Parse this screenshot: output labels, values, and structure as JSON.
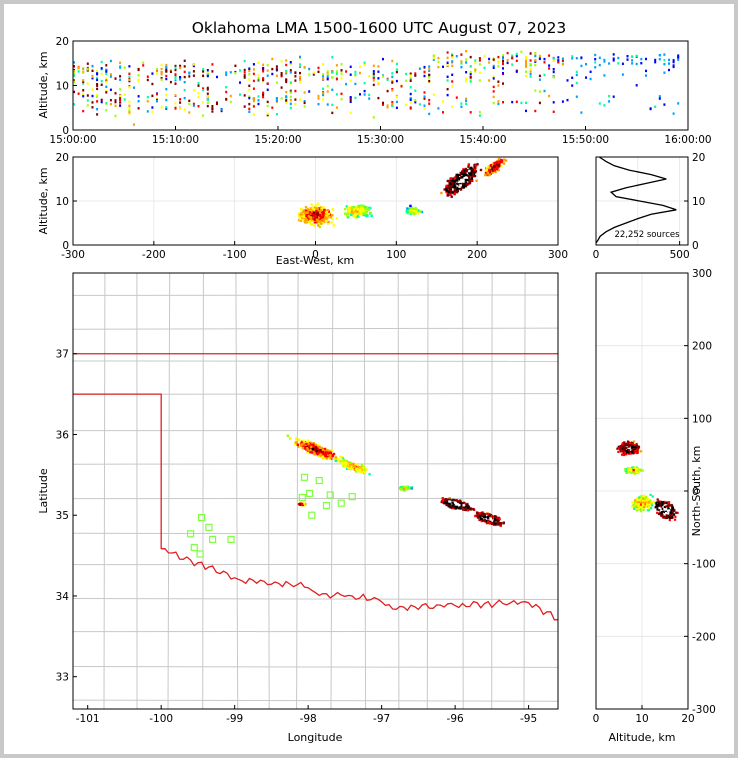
{
  "title": "Oklahoma LMA 1500-1600 UTC August 07, 2023",
  "chart_data": [
    {
      "panel": "time-height",
      "type": "heatmap",
      "ylabel": "Altitude, km",
      "xlabel": "",
      "x_ticks": [
        "15:00:00",
        "15:10:00",
        "15:20:00",
        "15:30:00",
        "15:40:00",
        "15:50:00",
        "16:00:00"
      ],
      "x_range_minutes": [
        0,
        60
      ],
      "ylim": [
        0,
        20
      ],
      "y_ticks": [
        0,
        10,
        20
      ]
    },
    {
      "panel": "east-west-altitude",
      "type": "heatmap",
      "xlabel": "East-West, km",
      "ylabel": "Altitude, km",
      "xlim": [
        -300,
        300
      ],
      "x_ticks": [
        -300,
        -200,
        -100,
        0,
        100,
        200,
        300
      ],
      "ylim": [
        0,
        20
      ],
      "y_ticks": [
        0,
        10,
        20
      ]
    },
    {
      "panel": "altitude-histogram",
      "type": "line",
      "xlim": [
        0,
        550
      ],
      "x_ticks": [
        0,
        500
      ],
      "ylim": [
        0,
        20
      ],
      "y_ticks": [
        0,
        10,
        20
      ],
      "source_count_label": "22,252 sources",
      "profile": [
        [
          0.5,
          0
        ],
        [
          1,
          10
        ],
        [
          2,
          25
        ],
        [
          3,
          60
        ],
        [
          4,
          110
        ],
        [
          5,
          180
        ],
        [
          6,
          250
        ],
        [
          7,
          330
        ],
        [
          8,
          480
        ],
        [
          9,
          400
        ],
        [
          10,
          260
        ],
        [
          11,
          120
        ],
        [
          12,
          90
        ],
        [
          13,
          180
        ],
        [
          14,
          300
        ],
        [
          15,
          420
        ],
        [
          16,
          330
        ],
        [
          17,
          200
        ],
        [
          18,
          110
        ],
        [
          19,
          60
        ],
        [
          20,
          20
        ]
      ]
    },
    {
      "panel": "plan-view",
      "type": "scatter",
      "xlabel": "Longitude",
      "ylabel": "Latitude",
      "xlim": [
        -101.2,
        -94.6
      ],
      "ylim": [
        32.6,
        38.0
      ],
      "x_ticks": [
        -101,
        -100,
        -99,
        -98,
        -97,
        -96,
        -95
      ],
      "y_ticks": [
        33,
        34,
        35,
        36,
        37
      ],
      "stations": [
        [
          -99.6,
          34.77
        ],
        [
          -99.45,
          34.97
        ],
        [
          -99.35,
          34.85
        ],
        [
          -99.3,
          34.7
        ],
        [
          -99.55,
          34.6
        ],
        [
          -99.47,
          34.52
        ],
        [
          -99.05,
          34.7
        ],
        [
          -98.05,
          35.47
        ],
        [
          -97.85,
          35.43
        ],
        [
          -98.08,
          35.22
        ],
        [
          -97.98,
          35.27
        ],
        [
          -97.75,
          35.12
        ],
        [
          -97.7,
          35.25
        ],
        [
          -97.55,
          35.15
        ],
        [
          -97.4,
          35.23
        ],
        [
          -97.95,
          35.0
        ]
      ]
    },
    {
      "panel": "altitude-north-south",
      "type": "heatmap",
      "xlabel": "Altitude, km",
      "ylabel": "North-South, km",
      "xlim": [
        0,
        20
      ],
      "x_ticks": [
        0,
        10,
        20
      ],
      "ylim": [
        -300,
        300
      ],
      "y_ticks": [
        -300,
        -200,
        -100,
        0,
        100,
        200,
        300
      ]
    }
  ],
  "colors": {
    "state_border": "#e02020",
    "county_lines": "#c8c8c8",
    "station_marker": "#80ff40",
    "density_scale": [
      "#0000ff",
      "#00a0ff",
      "#00ffa0",
      "#a0ff00",
      "#ffff00",
      "#ffa000",
      "#ff0000",
      "#800000",
      "#000000",
      "#ffffff"
    ]
  }
}
